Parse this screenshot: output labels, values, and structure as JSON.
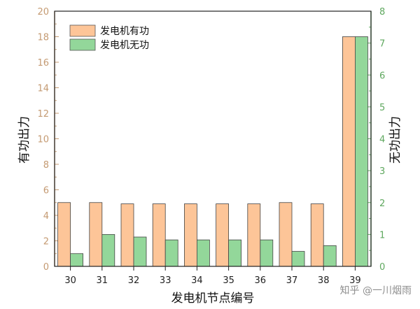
{
  "chart_data": {
    "type": "bar",
    "categories": [
      "30",
      "31",
      "32",
      "33",
      "34",
      "35",
      "36",
      "37",
      "38",
      "39"
    ],
    "series": [
      {
        "name": "发电机有功",
        "axis": "left",
        "color": "#fdc598",
        "values": [
          5.0,
          5.0,
          4.9,
          4.9,
          4.9,
          4.9,
          4.9,
          5.0,
          4.9,
          18.0
        ]
      },
      {
        "name": "发电机无功",
        "axis": "right",
        "color": "#93d79a",
        "values": [
          0.4,
          1.0,
          0.92,
          0.83,
          0.83,
          0.83,
          0.83,
          0.47,
          0.65,
          7.2
        ]
      }
    ],
    "xlabel": "发电机节点编号",
    "ylabel_left": "有功出力",
    "ylabel_right": "无功出力",
    "ylim_left": [
      0,
      20
    ],
    "ylim_right": [
      0,
      8
    ],
    "yticks_left": [
      0,
      2,
      4,
      6,
      8,
      10,
      12,
      14,
      16,
      18,
      20
    ],
    "yticks_right": [
      0,
      1,
      2,
      3,
      4,
      5,
      6,
      7,
      8
    ],
    "grid": false,
    "legend_position": "top-left",
    "colors": {
      "left_axis": "#c49a72",
      "right_axis": "#5fa85f",
      "frame": "#222222"
    }
  },
  "watermark": "知乎 @一川烟雨"
}
